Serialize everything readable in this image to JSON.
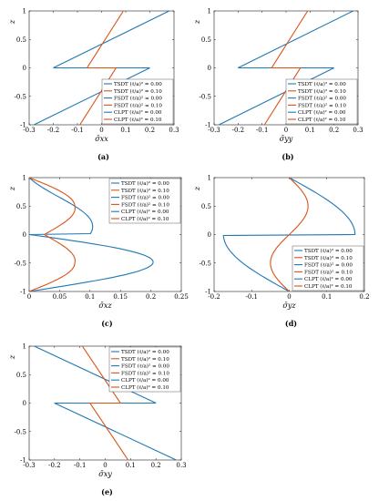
{
  "colors": {
    "tsdt": "#1f77b4",
    "fsdt": "#1f77b4",
    "clpt": "#1f77b4",
    "orange": "#d95319"
  },
  "chart_data": [
    {
      "id": "a",
      "caption": "(a)",
      "type": "line",
      "xlabel": "σ̄xx",
      "ylabel": "z",
      "xlim": [
        -0.3,
        0.3
      ],
      "ylim": [
        -1,
        1
      ],
      "xticks": [
        "-0.3",
        "-0.2",
        "-0.1",
        "0",
        "0.1",
        "0.2",
        "0.3"
      ],
      "yticks": [
        "-1",
        "-0.5",
        "0",
        "0.5",
        "1"
      ],
      "legend_position": "bottom-right",
      "series": [
        {
          "name": "TSDT (ℓ/a)² = 0.00",
          "color": "#1f77b4",
          "x": [
            -0.28,
            -0.2,
            null,
            0.2,
            0.28
          ],
          "y": [
            -1,
            0,
            null,
            0,
            1
          ],
          "ext": [
            [
              -0.2,
              0,
              0.2,
              0
            ]
          ]
        },
        {
          "name": "TSDT (ℓ/a)² = 0.10",
          "color": "#d95319",
          "x": [
            -0.09,
            -0.06,
            null,
            0.06,
            0.09
          ],
          "y": [
            -1,
            0,
            null,
            0,
            1
          ],
          "ext": [
            [
              -0.06,
              0,
              0.06,
              0
            ]
          ]
        },
        {
          "name": "FSDT (ℓ/a)² = 0.00",
          "color": "#1f77b4",
          "x": [],
          "y": []
        },
        {
          "name": "FSDT (ℓ/a)² = 0.10",
          "color": "#d95319",
          "x": [],
          "y": []
        },
        {
          "name": "CLPT (ℓ/a)² = 0.00",
          "color": "#1f77b4",
          "x": [],
          "y": []
        },
        {
          "name": "CLPT (ℓ/a)² = 0.10",
          "color": "#d95319",
          "x": [],
          "y": []
        }
      ],
      "curves": [
        {
          "color": "#1f77b4",
          "pts": [
            [
              -0.28,
              -1
            ],
            [
              0.2,
              0
            ],
            [
              -0.2,
              0
            ],
            [
              0.28,
              1
            ]
          ]
        },
        {
          "color": "#d95319",
          "pts": [
            [
              -0.09,
              -1
            ],
            [
              0.06,
              0
            ],
            [
              -0.06,
              0
            ],
            [
              0.09,
              1
            ]
          ]
        }
      ]
    },
    {
      "id": "b",
      "caption": "(b)",
      "type": "line",
      "xlabel": "σ̄yy",
      "ylabel": "z",
      "xlim": [
        -0.3,
        0.3
      ],
      "ylim": [
        -1,
        1
      ],
      "xticks": [
        "-0.3",
        "-0.2",
        "-0.1",
        "0",
        "0.1",
        "0.2",
        "0.3"
      ],
      "yticks": [
        "-1",
        "-0.5",
        "0",
        "0.5",
        "1"
      ],
      "legend_position": "bottom-right",
      "series": [
        {
          "name": "TSDT (ℓ/a)² = 0.00",
          "color": "#1f77b4"
        },
        {
          "name": "TSDT (ℓ/a)² = 0.10",
          "color": "#d95319"
        },
        {
          "name": "FSDT (ℓ/a)² = 0.00",
          "color": "#1f77b4"
        },
        {
          "name": "FSDT (ℓ/a)² = 0.10",
          "color": "#d95319"
        },
        {
          "name": "CLPT (ℓ/a)² = 0.00",
          "color": "#1f77b4"
        },
        {
          "name": "CLPT (ℓ/a)² = 0.10",
          "color": "#d95319"
        }
      ],
      "curves": [
        {
          "color": "#1f77b4",
          "pts": [
            [
              -0.28,
              -1
            ],
            [
              0.2,
              0
            ],
            [
              -0.2,
              0
            ],
            [
              0.28,
              1
            ]
          ]
        },
        {
          "color": "#d95319",
          "pts": [
            [
              -0.09,
              -1
            ],
            [
              0.06,
              0
            ],
            [
              -0.06,
              0
            ],
            [
              0.09,
              1
            ]
          ]
        }
      ]
    },
    {
      "id": "c",
      "caption": "(c)",
      "type": "line",
      "xlabel": "σ̄xz",
      "ylabel": "z",
      "xlim": [
        0,
        0.25
      ],
      "ylim": [
        -1,
        1
      ],
      "xticks": [
        "0",
        "0.05",
        "0.1",
        "0.15",
        "0.2",
        "0.25"
      ],
      "yticks": [
        "-1",
        "-0.5",
        "0",
        "0.5",
        "1"
      ],
      "legend_position": "top-right",
      "series": [
        {
          "name": "TSDT (ℓ/a)² = 0.00",
          "color": "#1f77b4"
        },
        {
          "name": "TSDT (ℓ/a)² = 0.10",
          "color": "#d95319"
        },
        {
          "name": "FSDT (ℓ/a)² = 0.00",
          "color": "#1f77b4"
        },
        {
          "name": "FSDT (ℓ/a)² = 0.10",
          "color": "#d95319"
        },
        {
          "name": "CLPT (ℓ/a)² = 0.00",
          "color": "#1f77b4"
        },
        {
          "name": "CLPT (ℓ/a)² = 0.10",
          "color": "#d95319"
        }
      ],
      "curves": [
        {
          "color": "#1f77b4",
          "fn": "xz_blue"
        },
        {
          "color": "#d95319",
          "fn": "xz_orange"
        }
      ]
    },
    {
      "id": "d",
      "caption": "(d)",
      "type": "line",
      "xlabel": "σ̄yz",
      "ylabel": "z",
      "xlim": [
        -0.2,
        0.2
      ],
      "ylim": [
        -1,
        1
      ],
      "xticks": [
        "-0.2",
        "-0.1",
        "0",
        "0.1",
        "0.2"
      ],
      "yticks": [
        "-1",
        "-0.5",
        "0",
        "0.5",
        "1"
      ],
      "legend_position": "bottom-right",
      "series": [
        {
          "name": "TSDT (ℓ/a)² = 0.00",
          "color": "#1f77b4"
        },
        {
          "name": "TSDT (ℓ/a)² = 0.10",
          "color": "#d95319"
        },
        {
          "name": "FSDT (ℓ/a)² = 0.00",
          "color": "#1f77b4"
        },
        {
          "name": "FSDT (ℓ/a)² = 0.10",
          "color": "#d95319"
        },
        {
          "name": "CLPT (ℓ/a)² = 0.00",
          "color": "#1f77b4"
        },
        {
          "name": "CLPT (ℓ/a)² = 0.10",
          "color": "#d95319"
        }
      ],
      "curves": [
        {
          "color": "#1f77b4",
          "fn": "yz_blue"
        },
        {
          "color": "#d95319",
          "fn": "yz_orange"
        }
      ]
    },
    {
      "id": "e",
      "caption": "(e)",
      "type": "line",
      "xlabel": "σ̄xy",
      "ylabel": "z",
      "xlim": [
        -0.3,
        0.3
      ],
      "ylim": [
        -1,
        1
      ],
      "xticks": [
        "-0.3",
        "-0.2",
        "-0.1",
        "0",
        "0.1",
        "0.2",
        "0.3"
      ],
      "yticks": [
        "-1",
        "-0.5",
        "0",
        "0.5",
        "1"
      ],
      "legend_position": "top-right",
      "series": [
        {
          "name": "TSDT (ℓ/a)² = 0.00",
          "color": "#1f77b4"
        },
        {
          "name": "TSDT (ℓ/a)² = 0.10",
          "color": "#d95319"
        },
        {
          "name": "FSDT (ℓ/a)² = 0.00",
          "color": "#1f77b4"
        },
        {
          "name": "FSDT (ℓ/a)² = 0.10",
          "color": "#d95319"
        },
        {
          "name": "CLPT (ℓ/a)² = 0.00",
          "color": "#1f77b4"
        },
        {
          "name": "CLPT (ℓ/a)² = 0.10",
          "color": "#d95319"
        }
      ],
      "curves": [
        {
          "color": "#1f77b4",
          "pts": [
            [
              -0.28,
              1
            ],
            [
              0.2,
              0
            ],
            [
              -0.2,
              0
            ],
            [
              0.28,
              -1
            ]
          ]
        },
        {
          "color": "#d95319",
          "pts": [
            [
              -0.09,
              1
            ],
            [
              0.06,
              0
            ],
            [
              -0.06,
              0
            ],
            [
              0.09,
              -1
            ]
          ]
        }
      ]
    }
  ]
}
